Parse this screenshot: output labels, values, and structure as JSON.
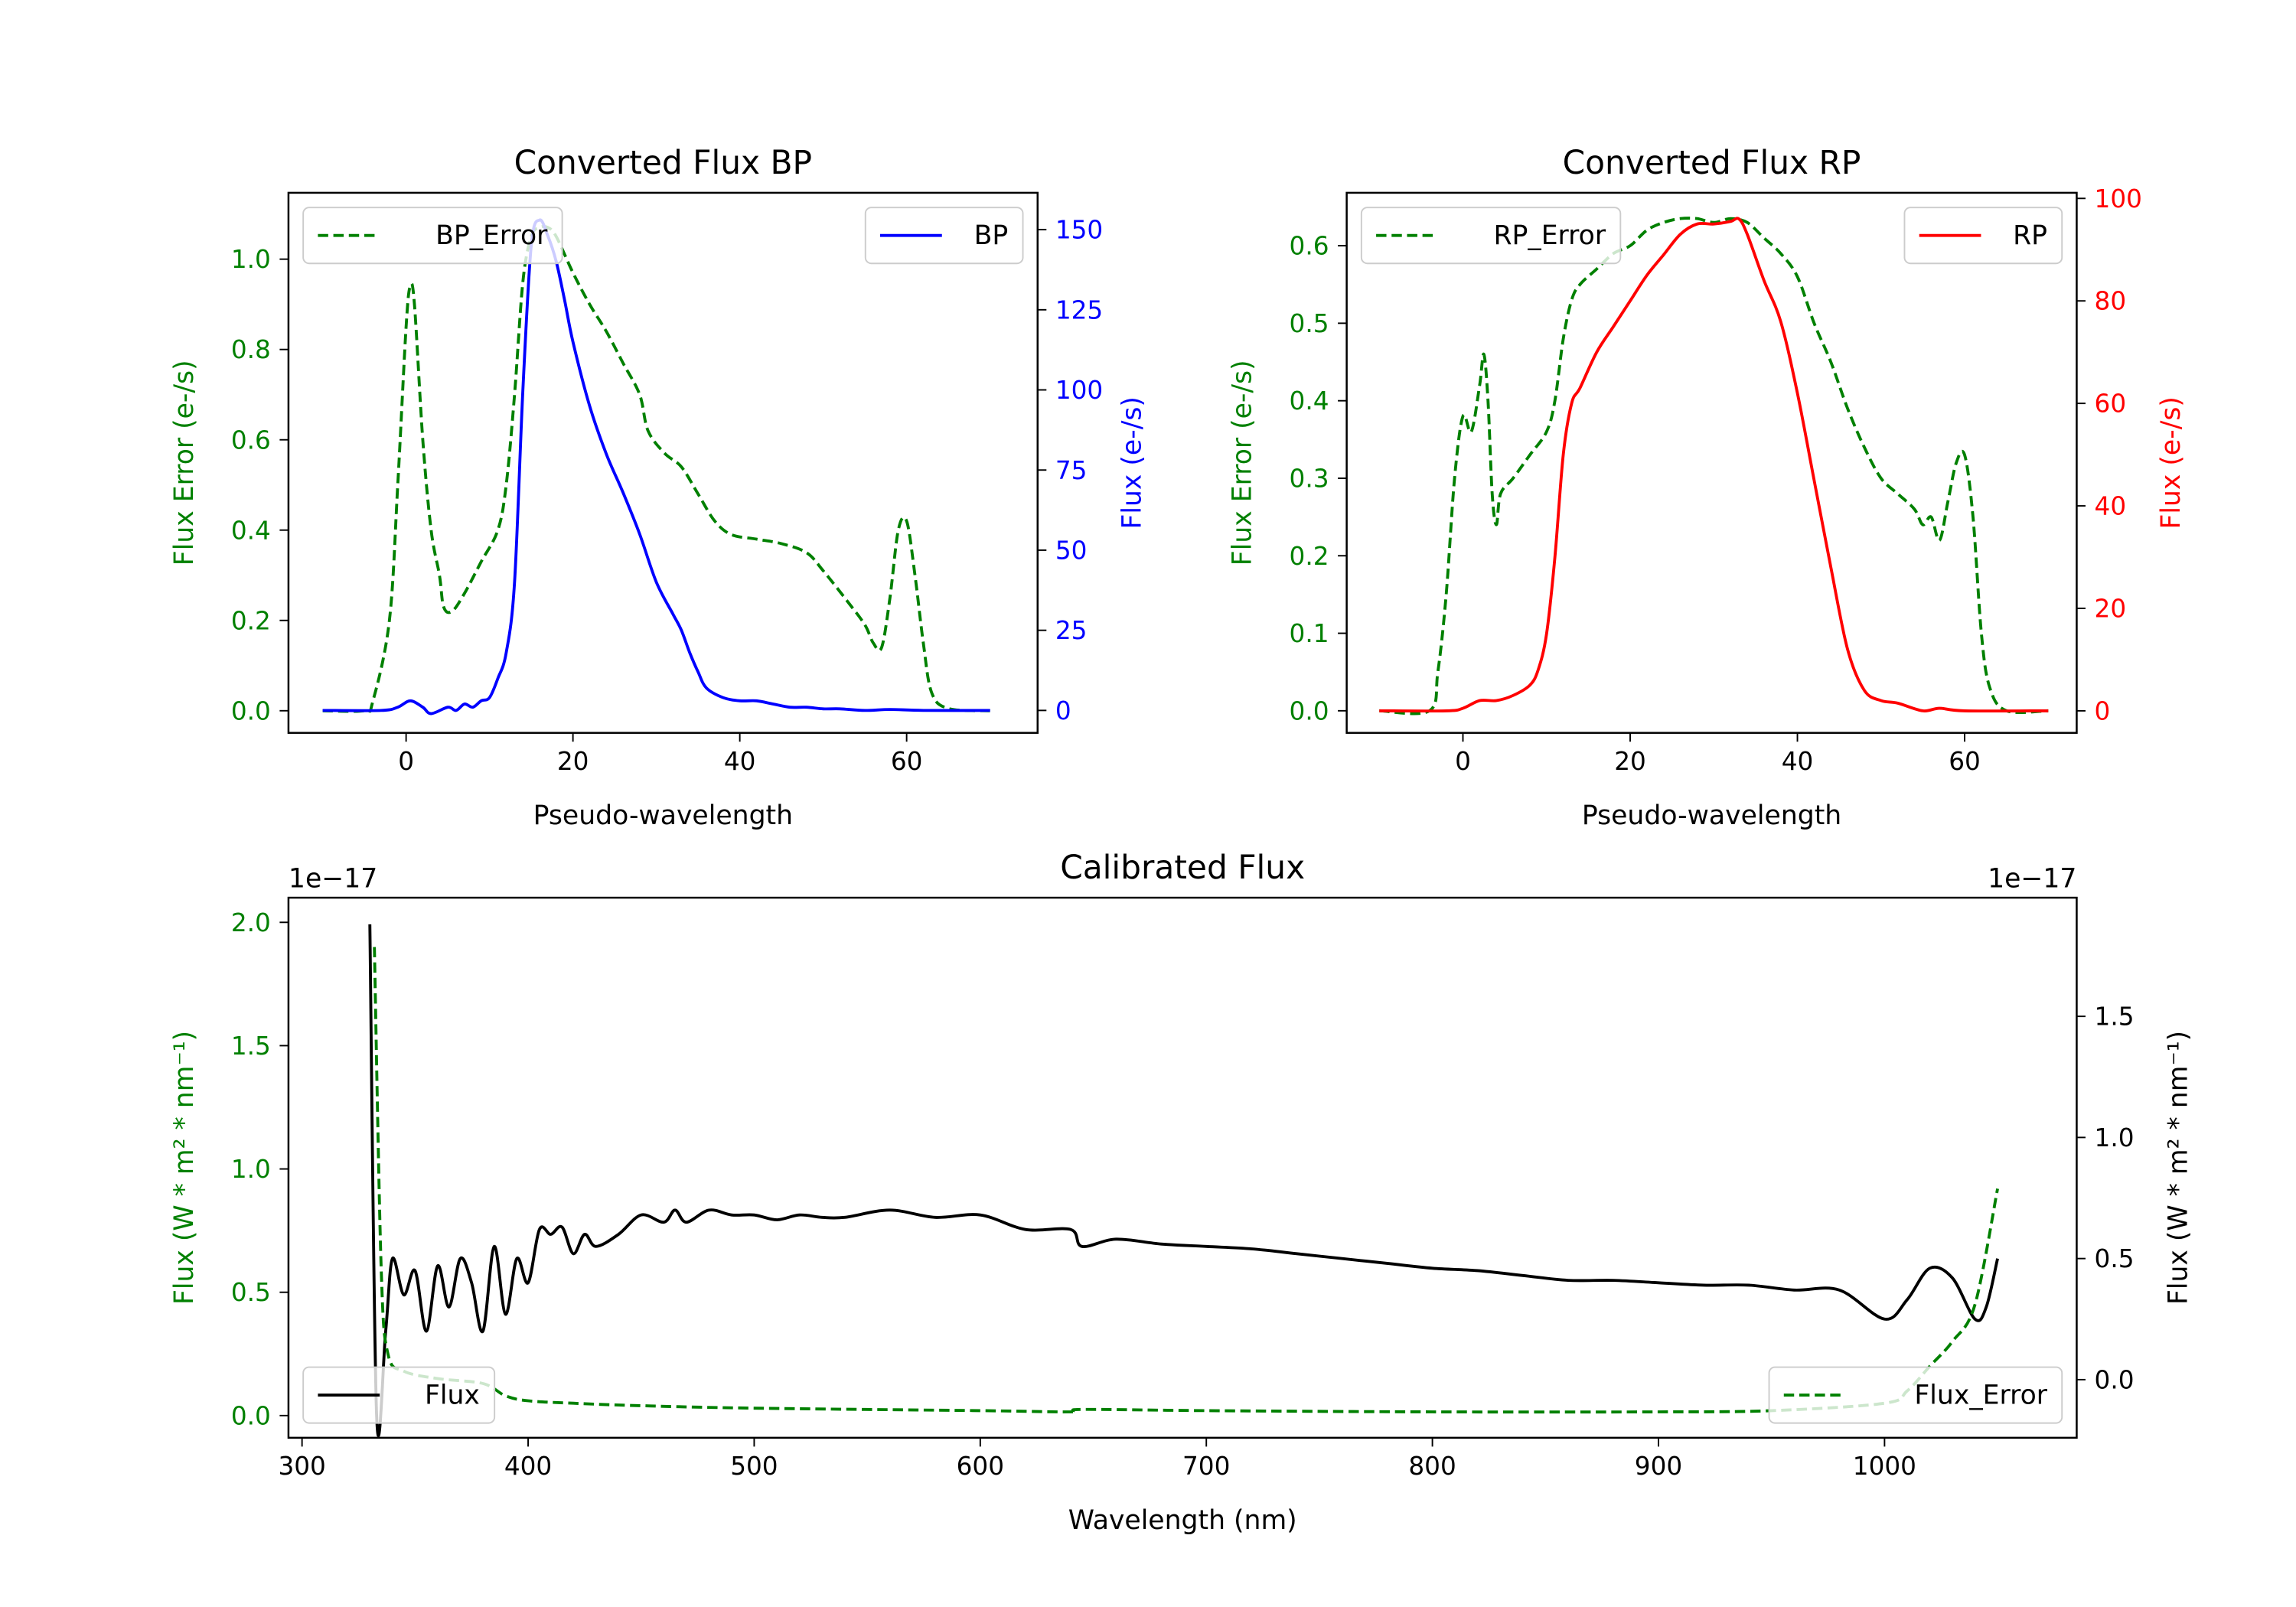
{
  "chart_data": [
    {
      "id": "bp",
      "type": "line",
      "title": "Converted Flux BP",
      "xlabel": "Pseudo-wavelength",
      "ylabel_left": "Flux Error (e-/s)",
      "ylabel_right": "Flux (e-/s)",
      "xlim": [
        -14.1,
        75.7
      ],
      "ylim_left": [
        -0.049,
        1.147
      ],
      "ylim_right": [
        -7,
        161.5
      ],
      "xticks": [
        0,
        20,
        40,
        60
      ],
      "yticks_left": [
        0.0,
        0.2,
        0.4,
        0.6,
        0.8,
        1.0
      ],
      "yticks_right": [
        0,
        25,
        50,
        75,
        100,
        125,
        150
      ],
      "left_color": "#008000",
      "right_color": "#0000ff",
      "series": [
        {
          "name": "BP_Error",
          "axis": "left",
          "color": "#008000",
          "dashed": true,
          "legend": "upper left",
          "x": [
            -10,
            -5,
            -4,
            -2,
            -1,
            0,
            0.5,
            1,
            2,
            3,
            4,
            4.5,
            5.5,
            7,
            9,
            11,
            12,
            13,
            14,
            15,
            16,
            17,
            18,
            20,
            22,
            24,
            26,
            28,
            29,
            31,
            33,
            35,
            37,
            39,
            42,
            45,
            48,
            50,
            53,
            55,
            56,
            57,
            58,
            59,
            60,
            61,
            62,
            63,
            65,
            70
          ],
          "y": [
            0,
            0,
            0.02,
            0.2,
            0.5,
            0.85,
            0.94,
            0.9,
            0.6,
            0.4,
            0.3,
            0.23,
            0.22,
            0.26,
            0.33,
            0.4,
            0.5,
            0.7,
            0.95,
            1.05,
            1.07,
            1.07,
            1.05,
            0.97,
            0.9,
            0.84,
            0.77,
            0.7,
            0.62,
            0.57,
            0.54,
            0.48,
            0.42,
            0.39,
            0.38,
            0.37,
            0.35,
            0.31,
            0.24,
            0.19,
            0.15,
            0.14,
            0.25,
            0.4,
            0.42,
            0.3,
            0.15,
            0.04,
            0.005,
            0
          ]
        },
        {
          "name": "BP",
          "axis": "right",
          "color": "#0000ff",
          "dashed": false,
          "legend": "upper right",
          "x": [
            -10,
            -3,
            -1,
            0.5,
            2,
            3,
            5,
            6,
            7,
            8,
            9,
            10,
            11,
            12,
            13,
            14,
            15,
            16,
            17,
            18,
            19,
            20,
            22,
            24,
            26,
            28,
            30,
            32,
            33,
            34,
            35,
            36,
            38,
            40,
            42,
            44,
            46,
            48,
            50,
            52,
            55,
            58,
            62,
            70
          ],
          "y": [
            0,
            0,
            1,
            3,
            1,
            -1,
            1,
            0,
            2,
            1,
            3,
            4,
            10,
            18,
            40,
            100,
            145,
            153,
            148,
            140,
            128,
            115,
            95,
            80,
            68,
            55,
            40,
            30,
            25,
            18,
            12,
            7,
            4,
            3,
            3,
            2,
            1,
            1,
            0.5,
            0.5,
            0,
            0.3,
            0,
            0
          ]
        }
      ]
    },
    {
      "id": "rp",
      "type": "line",
      "title": "Converted Flux RP",
      "xlabel": "Pseudo-wavelength",
      "ylabel_left": "Flux Error (e-/s)",
      "ylabel_right": "Flux (e-/s)",
      "xlim": [
        -13.9,
        73.4
      ],
      "ylim_left": [
        -0.0285,
        0.6683
      ],
      "ylim_right": [
        -4.3,
        101.1
      ],
      "xticks": [
        0,
        20,
        40,
        60
      ],
      "yticks_left": [
        0.0,
        0.1,
        0.2,
        0.3,
        0.4,
        0.5,
        0.6
      ],
      "yticks_right": [
        0,
        20,
        40,
        60,
        80,
        100
      ],
      "left_color": "#008000",
      "right_color": "#ff0000",
      "series": [
        {
          "name": "RP_Error",
          "axis": "left",
          "color": "#008000",
          "dashed": true,
          "legend": "upper left",
          "x": [
            -10,
            -4,
            -3,
            -2,
            -1,
            0,
            1,
            2,
            2.5,
            3,
            3.5,
            4,
            4.5,
            6,
            8,
            10,
            11,
            12,
            13,
            14,
            16,
            18,
            20,
            22,
            24,
            26,
            28,
            30,
            32,
            34,
            36,
            38,
            40,
            42,
            44,
            46,
            48,
            50,
            52,
            54,
            55,
            56,
            57,
            58,
            59,
            60,
            61,
            62,
            63,
            65,
            70
          ],
          "y": [
            0,
            0,
            0.05,
            0.15,
            0.3,
            0.38,
            0.36,
            0.42,
            0.46,
            0.4,
            0.28,
            0.24,
            0.28,
            0.3,
            0.33,
            0.36,
            0.4,
            0.48,
            0.53,
            0.55,
            0.57,
            0.59,
            0.6,
            0.62,
            0.63,
            0.635,
            0.635,
            0.63,
            0.635,
            0.63,
            0.61,
            0.59,
            0.56,
            0.5,
            0.45,
            0.39,
            0.34,
            0.3,
            0.28,
            0.26,
            0.24,
            0.25,
            0.22,
            0.27,
            0.32,
            0.33,
            0.25,
            0.1,
            0.03,
            0,
            0
          ]
        },
        {
          "name": "RP",
          "axis": "right",
          "color": "#ff0000",
          "dashed": false,
          "legend": "upper right",
          "x": [
            -10,
            -2,
            0,
            2,
            4,
            6,
            8,
            9,
            10,
            11,
            12,
            13,
            14,
            16,
            18,
            20,
            22,
            24,
            26,
            28,
            30,
            32,
            33,
            34,
            36,
            38,
            40,
            42,
            44,
            46,
            48,
            50,
            52,
            55,
            57,
            60,
            70
          ],
          "y": [
            0,
            0,
            0.5,
            2,
            2,
            3,
            5,
            8,
            15,
            30,
            50,
            60,
            63,
            70,
            75,
            80,
            85,
            89,
            93,
            95,
            95,
            95.5,
            96,
            93,
            84,
            76,
            62,
            45,
            28,
            12,
            4,
            2,
            1.5,
            0,
            0.5,
            0,
            0
          ]
        }
      ]
    },
    {
      "id": "cal",
      "type": "line",
      "title": "Calibrated Flux",
      "xlabel": "Wavelength (nm)",
      "ylabel_left": "Flux (W * m² * nm⁻¹)",
      "ylabel_right": "Flux (W * m² * nm⁻¹)",
      "offset_left": "1e−17",
      "offset_right": "1e−17",
      "xlim": [
        294,
        1085
      ],
      "ylim_left": [
        -0.09,
        2.1
      ],
      "ylim_right": [
        -0.24,
        1.99
      ],
      "xticks": [
        300,
        400,
        500,
        600,
        700,
        800,
        900,
        1000
      ],
      "yticks_left": [
        0.0,
        0.5,
        1.0,
        1.5,
        2.0
      ],
      "yticks_right": [
        0.0,
        0.5,
        1.0,
        1.5
      ],
      "left_color": "#008000",
      "right_color": "#000000",
      "series": [
        {
          "name": "Flux",
          "axis": "right",
          "color": "#000000",
          "dashed": false,
          "legend": "lower left",
          "x": [
            330,
            333,
            337,
            340,
            345,
            350,
            355,
            360,
            365,
            370,
            375,
            380,
            385,
            390,
            395,
            400,
            405,
            410,
            415,
            420,
            425,
            430,
            440,
            450,
            460,
            465,
            470,
            480,
            490,
            500,
            510,
            520,
            530,
            540,
            560,
            580,
            600,
            620,
            640,
            645,
            660,
            680,
            700,
            720,
            740,
            760,
            780,
            800,
            820,
            840,
            860,
            880,
            900,
            920,
            940,
            960,
            980,
            1000,
            1010,
            1020,
            1030,
            1040,
            1045,
            1050
          ],
          "y": [
            1.88,
            -0.15,
            0.2,
            0.5,
            0.35,
            0.45,
            0.2,
            0.47,
            0.3,
            0.5,
            0.4,
            0.2,
            0.55,
            0.27,
            0.5,
            0.4,
            0.62,
            0.6,
            0.63,
            0.52,
            0.6,
            0.55,
            0.6,
            0.68,
            0.65,
            0.7,
            0.65,
            0.7,
            0.68,
            0.68,
            0.66,
            0.68,
            0.67,
            0.67,
            0.7,
            0.67,
            0.68,
            0.62,
            0.62,
            0.55,
            0.58,
            0.56,
            0.55,
            0.54,
            0.52,
            0.5,
            0.48,
            0.46,
            0.45,
            0.43,
            0.41,
            0.41,
            0.4,
            0.39,
            0.39,
            0.37,
            0.37,
            0.25,
            0.33,
            0.46,
            0.42,
            0.25,
            0.3,
            0.5
          ]
        },
        {
          "name": "Flux_Error",
          "axis": "left",
          "color": "#008000",
          "dashed": true,
          "legend": "lower right",
          "x": [
            332,
            335,
            338,
            345,
            360,
            380,
            390,
            400,
            420,
            450,
            500,
            600,
            640,
            645,
            700,
            800,
            900,
            950,
            1000,
            1010,
            1020,
            1030,
            1040,
            1050
          ],
          "y": [
            1.9,
            0.6,
            0.25,
            0.18,
            0.15,
            0.13,
            0.08,
            0.06,
            0.05,
            0.04,
            0.03,
            0.02,
            0.015,
            0.025,
            0.02,
            0.015,
            0.015,
            0.02,
            0.05,
            0.1,
            0.2,
            0.3,
            0.45,
            0.92
          ]
        }
      ]
    }
  ]
}
